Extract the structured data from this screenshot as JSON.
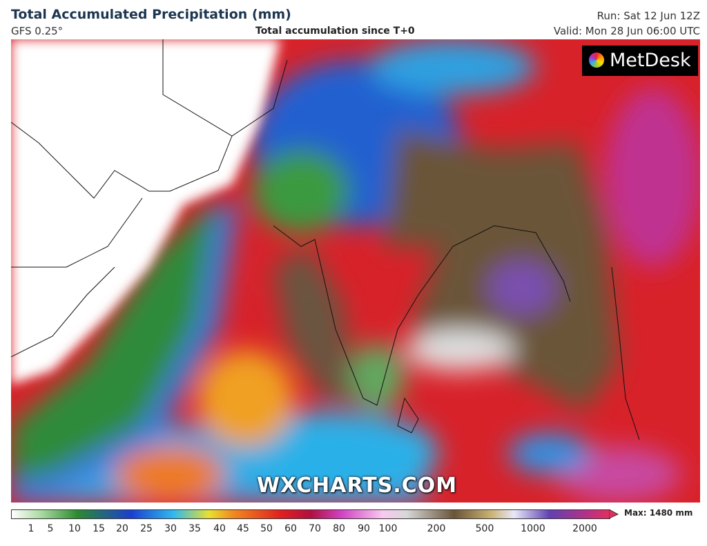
{
  "header": {
    "title": "Total Accumulated Precipitation (mm)",
    "model": "GFS 0.25°",
    "subtitle": "Total accumulation since T+0",
    "run": "Run: Sat 12 Jun 12Z",
    "valid": "Valid: Mon 28 Jun 06:00 UTC"
  },
  "map": {
    "logo": "MetDesk",
    "watermark": "WXCHARTS.COM"
  },
  "colorbar": {
    "ticks": [
      1,
      5,
      10,
      15,
      20,
      25,
      30,
      35,
      40,
      45,
      50,
      60,
      70,
      80,
      90,
      100,
      200,
      500,
      1000,
      2000
    ],
    "max_label": "Max: 1480 mm"
  }
}
